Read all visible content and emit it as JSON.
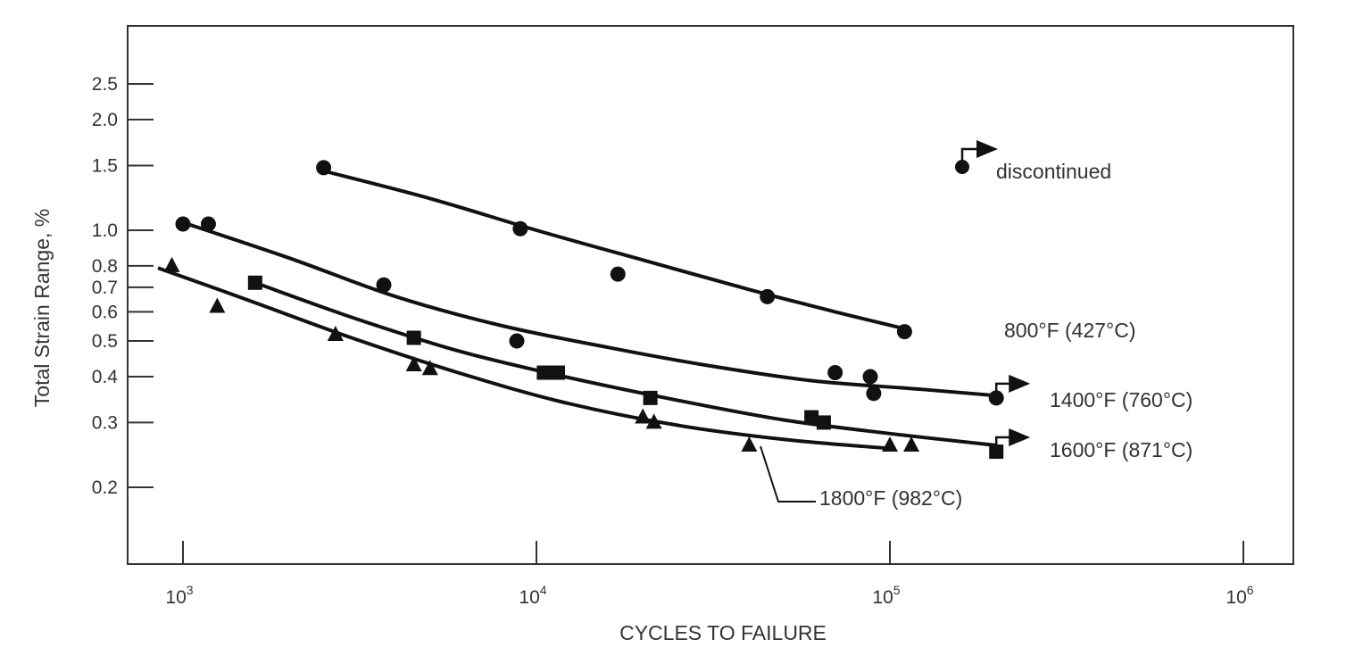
{
  "chart_data": {
    "type": "scatter",
    "xlabel": "CYCLES TO FAILURE",
    "ylabel": "Total Strain Range, %",
    "x_scale": "log",
    "y_scale": "log",
    "xlim": [
      800,
      1400000
    ],
    "ylim": [
      0.14,
      3.4
    ],
    "x_ticks": [
      {
        "value": 1000,
        "base": "10",
        "exp": "3"
      },
      {
        "value": 10000,
        "base": "10",
        "exp": "4"
      },
      {
        "value": 100000,
        "base": "10",
        "exp": "5"
      },
      {
        "value": 1000000,
        "base": "10",
        "exp": "6"
      }
    ],
    "y_ticks": [
      {
        "value": 0.2,
        "label": "0.2"
      },
      {
        "value": 0.3,
        "label": "0.3"
      },
      {
        "value": 0.4,
        "label": "0.4"
      },
      {
        "value": 0.5,
        "label": "0.5"
      },
      {
        "value": 0.6,
        "label": "0.6"
      },
      {
        "value": 0.7,
        "label": "0.7"
      },
      {
        "value": 0.8,
        "label": "0.8"
      },
      {
        "value": 1.0,
        "label": "1.0"
      },
      {
        "value": 1.5,
        "label": "1.5"
      },
      {
        "value": 2.0,
        "label": "2.0"
      },
      {
        "value": 2.5,
        "label": "2.5"
      }
    ],
    "series": [
      {
        "name": "800°F (427°C)",
        "marker": "circle",
        "points": [
          [
            2500,
            1.48
          ],
          [
            9000,
            1.01
          ],
          [
            17000,
            0.76
          ],
          [
            45000,
            0.66
          ],
          [
            110000,
            0.53
          ]
        ],
        "curve": [
          [
            2500,
            1.45
          ],
          [
            5000,
            1.22
          ],
          [
            10000,
            1.0
          ],
          [
            20000,
            0.83
          ],
          [
            40000,
            0.69
          ],
          [
            70000,
            0.6
          ],
          [
            110000,
            0.54
          ]
        ],
        "runout_index": null
      },
      {
        "name": "1400°F (760°C)",
        "marker": "circle",
        "points": [
          [
            1000,
            1.04
          ],
          [
            1180,
            1.04
          ],
          [
            3700,
            0.71
          ],
          [
            8800,
            0.5
          ],
          [
            70000,
            0.41
          ],
          [
            88000,
            0.4
          ],
          [
            90000,
            0.36
          ],
          [
            200000,
            0.35
          ]
        ],
        "curve": [
          [
            1000,
            1.05
          ],
          [
            2000,
            0.84
          ],
          [
            4000,
            0.66
          ],
          [
            8000,
            0.55
          ],
          [
            16000,
            0.48
          ],
          [
            30000,
            0.43
          ],
          [
            60000,
            0.39
          ],
          [
            120000,
            0.37
          ],
          [
            200000,
            0.355
          ]
        ],
        "runout_index": 7
      },
      {
        "name": "1600°F (871°C)",
        "marker": "square",
        "points": [
          [
            1600,
            0.72
          ],
          [
            4500,
            0.51
          ],
          [
            10500,
            0.41
          ],
          [
            11500,
            0.41
          ],
          [
            21000,
            0.35
          ],
          [
            60000,
            0.31
          ],
          [
            65000,
            0.3
          ],
          [
            200000,
            0.25
          ]
        ],
        "curve": [
          [
            1600,
            0.72
          ],
          [
            3000,
            0.58
          ],
          [
            6000,
            0.47
          ],
          [
            12000,
            0.4
          ],
          [
            25000,
            0.345
          ],
          [
            50000,
            0.305
          ],
          [
            100000,
            0.28
          ],
          [
            200000,
            0.26
          ]
        ],
        "runout_index": 7
      },
      {
        "name": "1800°F (982°C)",
        "marker": "triangle",
        "points": [
          [
            930,
            0.8
          ],
          [
            1250,
            0.62
          ],
          [
            2700,
            0.52
          ],
          [
            4500,
            0.43
          ],
          [
            5000,
            0.42
          ],
          [
            20000,
            0.31
          ],
          [
            21500,
            0.3
          ],
          [
            40000,
            0.26
          ],
          [
            100000,
            0.26
          ],
          [
            115000,
            0.26
          ]
        ],
        "curve": [
          [
            850,
            0.79
          ],
          [
            1500,
            0.65
          ],
          [
            3000,
            0.51
          ],
          [
            6000,
            0.41
          ],
          [
            12000,
            0.34
          ],
          [
            25000,
            0.295
          ],
          [
            50000,
            0.27
          ],
          [
            100000,
            0.255
          ]
        ],
        "runout_index": null
      }
    ],
    "annotations": {
      "legend_text": "discontinued",
      "s800": "800°F (427°C)",
      "s1400": "1400°F (760°C)",
      "s1600": "1600°F (871°C)",
      "s1800": "1800°F (982°C)"
    }
  }
}
